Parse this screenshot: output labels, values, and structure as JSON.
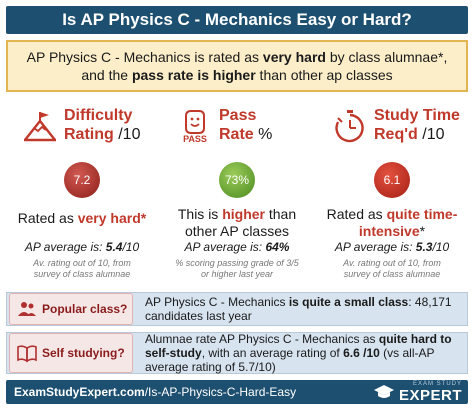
{
  "title": "Is AP Physics C - Mechanics Easy or Hard?",
  "summary": {
    "line1_pre": "AP Physics C - Mechanics is rated as ",
    "line1_bold": "very hard",
    "line1_post": " by class alumnae*,",
    "line2_pre": "and the ",
    "line2_bold": "pass rate is higher",
    "line2_post": " than other ap classes"
  },
  "difficulty": {
    "title_red": "Difficulty",
    "title_line2_red": "Rating",
    "title_line2_rest": " /10",
    "icon": "mountain-flag-icon",
    "value": "7.2",
    "verdict_pre": "Rated as ",
    "verdict_bold": "very hard*",
    "avg_pre": "AP average is: ",
    "avg_bold": "5.4",
    "avg_post": "/10",
    "note_line1": "Av. rating out of 10, from",
    "note_line2": "survey of class alumnae"
  },
  "pass": {
    "title_red": "Pass",
    "title_line2_red": "Rate",
    "title_line2_rest": " %",
    "icon": "pass-icon",
    "icon_text": "PASS",
    "value": "73%",
    "verdict_line1_pre": "This is ",
    "verdict_line1_bold": "higher",
    "verdict_line1_post": " than",
    "verdict_line2": "other AP classes",
    "avg_pre": "AP average is: ",
    "avg_bold": "64%",
    "note_line1": "% scoring passing grade of 3/5",
    "note_line2": "or higher last year"
  },
  "study": {
    "title_red": "Study Time",
    "title_line2_red": "Req'd",
    "title_line2_rest": " /10",
    "icon": "stopwatch-icon",
    "value": "6.1",
    "verdict_line1_pre": "Rated as ",
    "verdict_line1_bold": "quite time-",
    "verdict_line2_bold": "intensive",
    "verdict_line2_post": "*",
    "avg_pre": "AP average is: ",
    "avg_bold": "5.3",
    "avg_post": "/10",
    "note_line1": "Av. rating out of 10, from",
    "note_line2": "survey of class alumnae"
  },
  "popular": {
    "label": "Popular class?",
    "icon": "users-icon",
    "text_pre": "AP Physics C - Mechanics ",
    "text_bold": "is quite a small class",
    "text_post": ": 48,171 candidates last year"
  },
  "self_study": {
    "label": "Self studying?",
    "icon": "open-book-icon",
    "text_pre": "Alumnae rate AP Physics C - Mechanics as ",
    "text_bold1": "quite hard to self-study",
    "text_mid": ", with an average rating of ",
    "text_bold2": "6.6 /10",
    "text_post": " (vs all-AP average rating of 5.7/10)"
  },
  "footer": {
    "brand": "ExamStudyExpert.com",
    "path": "/Is-AP-Physics-C-Hard-Easy",
    "logo_small": "EXAM STUDY",
    "logo_big": "EXPERT",
    "logo_icon": "graduation-cap-icon"
  },
  "colors": {
    "navy": "#1d4f70",
    "accent_red": "#c0392b",
    "summary_bg": "#fbeec9",
    "row_bg": "#d7e3ef"
  }
}
